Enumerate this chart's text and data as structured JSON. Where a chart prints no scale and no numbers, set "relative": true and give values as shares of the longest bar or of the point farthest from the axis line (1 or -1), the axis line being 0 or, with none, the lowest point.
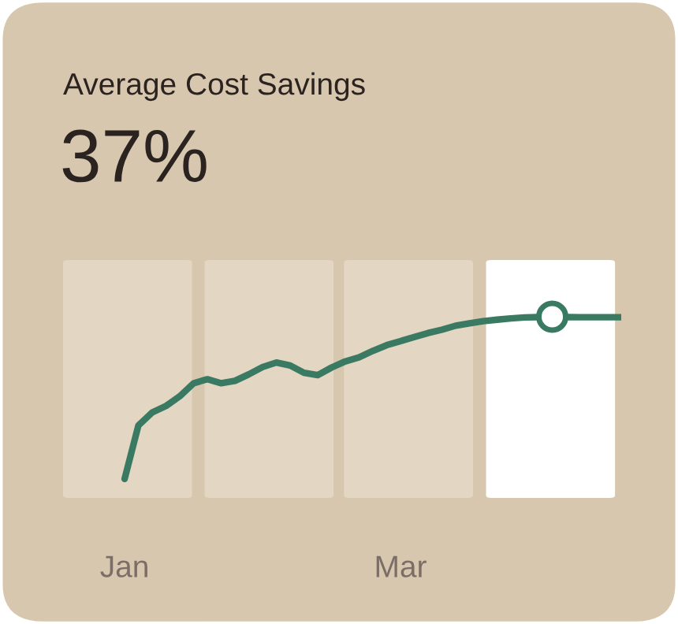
{
  "chart_data": {
    "type": "line",
    "title": "Average Cost Savings",
    "subtitle": "37%",
    "relative": true,
    "categories": [
      "Jan",
      null,
      null,
      null,
      null,
      null,
      null,
      null,
      null,
      null,
      null,
      null,
      null,
      null,
      null,
      null,
      null,
      null,
      null,
      null,
      "Mar",
      null,
      null,
      null,
      null,
      null,
      null,
      null,
      null,
      null,
      null,
      null,
      null,
      null,
      null,
      null,
      null
    ],
    "series": [
      {
        "color": "#3a7a62",
        "values": [
          0,
          0.33,
          0.41,
          0.45,
          0.51,
          0.59,
          0.615,
          0.59,
          0.605,
          0.645,
          0.69,
          0.718,
          0.7,
          0.655,
          0.64,
          0.687,
          0.725,
          0.75,
          0.79,
          0.825,
          0.85,
          0.875,
          0.9,
          0.92,
          0.945,
          0.96,
          0.973,
          0.982,
          0.99,
          0.996,
          0.998,
          1.0,
          0.998,
          0.997,
          0.997,
          0.997,
          0.997
        ]
      },
      {
        "type": "scatter",
        "marker": "circle",
        "color": "#3a7a62",
        "values": [
          null,
          null,
          null,
          null,
          null,
          null,
          null,
          null,
          null,
          null,
          null,
          null,
          null,
          null,
          null,
          null,
          null,
          null,
          null,
          null,
          null,
          null,
          null,
          null,
          null,
          null,
          null,
          null,
          null,
          null,
          null,
          1.0,
          null,
          null,
          null,
          null,
          null
        ]
      }
    ]
  }
}
